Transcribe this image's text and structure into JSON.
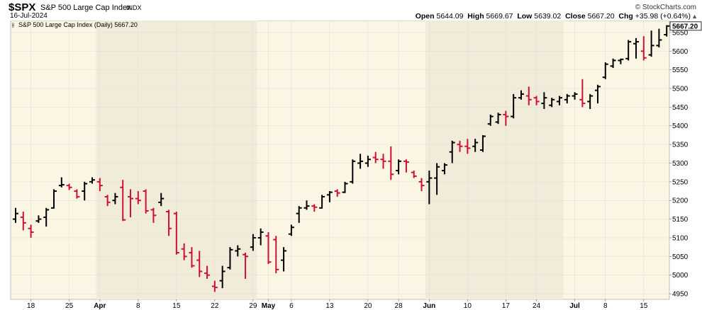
{
  "header": {
    "symbol": "$SPX",
    "name": "S&P 500 Large Cap Index",
    "exchange": "INDX",
    "date": "16-Jul-2024",
    "credit": "© StockCharts.com",
    "open_label": "Open",
    "open": "5644.09",
    "high_label": "High",
    "high": "5669.67",
    "low_label": "Low",
    "low": "5639.02",
    "close_label": "Close",
    "close": "5667.20",
    "chg_label": "Chg",
    "chg": "+35.98 (+0.64%)",
    "arrow_icon": "up-triangle-icon"
  },
  "chart_data": {
    "type": "ohlc-bar",
    "legend": "S&P 500 Large Cap Index (Daily) 5667.20",
    "last_price_label": "5667.20",
    "ylim": [
      4935,
      5682
    ],
    "yticks": [
      4950,
      5000,
      5050,
      5100,
      5150,
      5200,
      5250,
      5300,
      5350,
      5400,
      5450,
      5500,
      5550,
      5600,
      5650
    ],
    "x_tick_labels": [
      {
        "i": 2,
        "label": "18"
      },
      {
        "i": 7,
        "label": "25"
      },
      {
        "i": 11,
        "label": "Apr"
      },
      {
        "i": 16,
        "label": "8"
      },
      {
        "i": 21,
        "label": "15"
      },
      {
        "i": 26,
        "label": "22"
      },
      {
        "i": 31,
        "label": "29"
      },
      {
        "i": 33,
        "label": "May"
      },
      {
        "i": 36,
        "label": "6"
      },
      {
        "i": 41,
        "label": "13"
      },
      {
        "i": 46,
        "label": "20"
      },
      {
        "i": 50,
        "label": "28"
      },
      {
        "i": 54,
        "label": "Jun"
      },
      {
        "i": 59,
        "label": "10"
      },
      {
        "i": 64,
        "label": "17"
      },
      {
        "i": 68,
        "label": "24"
      },
      {
        "i": 73,
        "label": "Jul"
      },
      {
        "i": 77,
        "label": "8"
      },
      {
        "i": 82,
        "label": "15"
      }
    ],
    "shaded_months": [
      [
        11,
        32
      ],
      [
        54,
        72
      ]
    ],
    "colors": {
      "up": "#000000",
      "down": "#cc1133",
      "background": "#fbf5e4",
      "shade": "#f1ebd9",
      "grid": "#dddddd"
    },
    "bars": [
      {
        "o": 5150,
        "h": 5180,
        "l": 5140,
        "c": 5165
      },
      {
        "o": 5155,
        "h": 5170,
        "l": 5120,
        "c": 5140
      },
      {
        "o": 5125,
        "h": 5135,
        "l": 5100,
        "c": 5115
      },
      {
        "o": 5145,
        "h": 5160,
        "l": 5140,
        "c": 5150
      },
      {
        "o": 5155,
        "h": 5180,
        "l": 5130,
        "c": 5175
      },
      {
        "o": 5180,
        "h": 5230,
        "l": 5178,
        "c": 5225
      },
      {
        "o": 5240,
        "h": 5262,
        "l": 5235,
        "c": 5242
      },
      {
        "o": 5240,
        "h": 5245,
        "l": 5228,
        "c": 5235
      },
      {
        "o": 5225,
        "h": 5230,
        "l": 5205,
        "c": 5210
      },
      {
        "o": 5225,
        "h": 5250,
        "l": 5200,
        "c": 5245
      },
      {
        "o": 5250,
        "h": 5262,
        "l": 5245,
        "c": 5255
      },
      {
        "o": 5250,
        "h": 5260,
        "l": 5225,
        "c": 5240
      },
      {
        "o": 5210,
        "h": 5215,
        "l": 5185,
        "c": 5195
      },
      {
        "o": 5200,
        "h": 5220,
        "l": 5190,
        "c": 5210
      },
      {
        "o": 5235,
        "h": 5255,
        "l": 5145,
        "c": 5148
      },
      {
        "o": 5210,
        "h": 5230,
        "l": 5155,
        "c": 5205
      },
      {
        "o": 5205,
        "h": 5225,
        "l": 5190,
        "c": 5200
      },
      {
        "o": 5225,
        "h": 5230,
        "l": 5165,
        "c": 5172
      },
      {
        "o": 5175,
        "h": 5180,
        "l": 5140,
        "c": 5160
      },
      {
        "o": 5195,
        "h": 5220,
        "l": 5185,
        "c": 5205
      },
      {
        "o": 5170,
        "h": 5175,
        "l": 5105,
        "c": 5125
      },
      {
        "o": 5165,
        "h": 5170,
        "l": 5055,
        "c": 5060
      },
      {
        "o": 5070,
        "h": 5085,
        "l": 5040,
        "c": 5050
      },
      {
        "o": 5060,
        "h": 5075,
        "l": 5020,
        "c": 5025
      },
      {
        "o": 5040,
        "h": 5065,
        "l": 4995,
        "c": 5010
      },
      {
        "o": 5005,
        "h": 5025,
        "l": 4990,
        "c": 5000
      },
      {
        "o": 4970,
        "h": 4985,
        "l": 4955,
        "c": 4967
      },
      {
        "o": 4985,
        "h": 5025,
        "l": 4965,
        "c": 5010
      },
      {
        "o": 5020,
        "h": 5075,
        "l": 5015,
        "c": 5068
      },
      {
        "o": 5065,
        "h": 5080,
        "l": 5050,
        "c": 5070
      },
      {
        "o": 5055,
        "h": 5060,
        "l": 4990,
        "c": 5050
      },
      {
        "o": 5075,
        "h": 5110,
        "l": 5065,
        "c": 5100
      },
      {
        "o": 5100,
        "h": 5125,
        "l": 5080,
        "c": 5115
      },
      {
        "o": 5105,
        "h": 5115,
        "l": 5030,
        "c": 5035
      },
      {
        "o": 5095,
        "h": 5105,
        "l": 5005,
        "c": 5015
      },
      {
        "o": 5040,
        "h": 5075,
        "l": 5010,
        "c": 5065
      },
      {
        "o": 5110,
        "h": 5135,
        "l": 5105,
        "c": 5128
      },
      {
        "o": 5165,
        "h": 5185,
        "l": 5140,
        "c": 5180
      },
      {
        "o": 5180,
        "h": 5200,
        "l": 5175,
        "c": 5185
      },
      {
        "o": 5185,
        "h": 5190,
        "l": 5170,
        "c": 5182
      },
      {
        "o": 5180,
        "h": 5215,
        "l": 5178,
        "c": 5210
      },
      {
        "o": 5215,
        "h": 5225,
        "l": 5195,
        "c": 5222
      },
      {
        "o": 5225,
        "h": 5230,
        "l": 5210,
        "c": 5220
      },
      {
        "o": 5222,
        "h": 5250,
        "l": 5220,
        "c": 5245
      },
      {
        "o": 5250,
        "h": 5310,
        "l": 5245,
        "c": 5305
      },
      {
        "o": 5300,
        "h": 5325,
        "l": 5285,
        "c": 5305
      },
      {
        "o": 5300,
        "h": 5320,
        "l": 5290,
        "c": 5310
      },
      {
        "o": 5315,
        "h": 5330,
        "l": 5300,
        "c": 5310
      },
      {
        "o": 5310,
        "h": 5325,
        "l": 5285,
        "c": 5305
      },
      {
        "o": 5305,
        "h": 5345,
        "l": 5255,
        "c": 5270
      },
      {
        "o": 5280,
        "h": 5310,
        "l": 5270,
        "c": 5305
      },
      {
        "o": 5305,
        "h": 5310,
        "l": 5275,
        "c": 5303
      },
      {
        "o": 5275,
        "h": 5280,
        "l": 5260,
        "c": 5265
      },
      {
        "o": 5250,
        "h": 5260,
        "l": 5225,
        "c": 5240
      },
      {
        "o": 5250,
        "h": 5280,
        "l": 5190,
        "c": 5260
      },
      {
        "o": 5260,
        "h": 5300,
        "l": 5215,
        "c": 5290
      },
      {
        "o": 5280,
        "h": 5300,
        "l": 5270,
        "c": 5295
      },
      {
        "o": 5330,
        "h": 5360,
        "l": 5300,
        "c": 5355
      },
      {
        "o": 5350,
        "h": 5360,
        "l": 5330,
        "c": 5345
      },
      {
        "o": 5345,
        "h": 5365,
        "l": 5325,
        "c": 5340
      },
      {
        "o": 5345,
        "h": 5365,
        "l": 5330,
        "c": 5355
      },
      {
        "o": 5335,
        "h": 5375,
        "l": 5330,
        "c": 5372
      },
      {
        "o": 5405,
        "h": 5430,
        "l": 5400,
        "c": 5425
      },
      {
        "o": 5410,
        "h": 5435,
        "l": 5405,
        "c": 5430
      },
      {
        "o": 5430,
        "h": 5440,
        "l": 5400,
        "c": 5425
      },
      {
        "o": 5425,
        "h": 5485,
        "l": 5420,
        "c": 5475
      },
      {
        "o": 5475,
        "h": 5495,
        "l": 5470,
        "c": 5485
      },
      {
        "o": 5480,
        "h": 5505,
        "l": 5455,
        "c": 5470
      },
      {
        "o": 5475,
        "h": 5480,
        "l": 5455,
        "c": 5465
      },
      {
        "o": 5460,
        "h": 5490,
        "l": 5445,
        "c": 5475
      },
      {
        "o": 5455,
        "h": 5475,
        "l": 5450,
        "c": 5470
      },
      {
        "o": 5465,
        "h": 5480,
        "l": 5455,
        "c": 5475
      },
      {
        "o": 5470,
        "h": 5485,
        "l": 5460,
        "c": 5480
      },
      {
        "o": 5480,
        "h": 5490,
        "l": 5470,
        "c": 5485
      },
      {
        "o": 5470,
        "h": 5525,
        "l": 5450,
        "c": 5460
      },
      {
        "o": 5465,
        "h": 5485,
        "l": 5445,
        "c": 5480
      },
      {
        "o": 5495,
        "h": 5510,
        "l": 5460,
        "c": 5505
      },
      {
        "o": 5530,
        "h": 5570,
        "l": 5525,
        "c": 5565
      },
      {
        "o": 5560,
        "h": 5580,
        "l": 5555,
        "c": 5575
      },
      {
        "o": 5575,
        "h": 5580,
        "l": 5565,
        "c": 5578
      },
      {
        "o": 5580,
        "h": 5630,
        "l": 5575,
        "c": 5625
      },
      {
        "o": 5620,
        "h": 5635,
        "l": 5580,
        "c": 5625
      },
      {
        "o": 5600,
        "h": 5640,
        "l": 5575,
        "c": 5582
      },
      {
        "o": 5590,
        "h": 5655,
        "l": 5585,
        "c": 5615
      },
      {
        "o": 5615,
        "h": 5660,
        "l": 5610,
        "c": 5630
      },
      {
        "o": 5644.09,
        "h": 5669.67,
        "l": 5639.02,
        "c": 5667.2
      }
    ]
  }
}
